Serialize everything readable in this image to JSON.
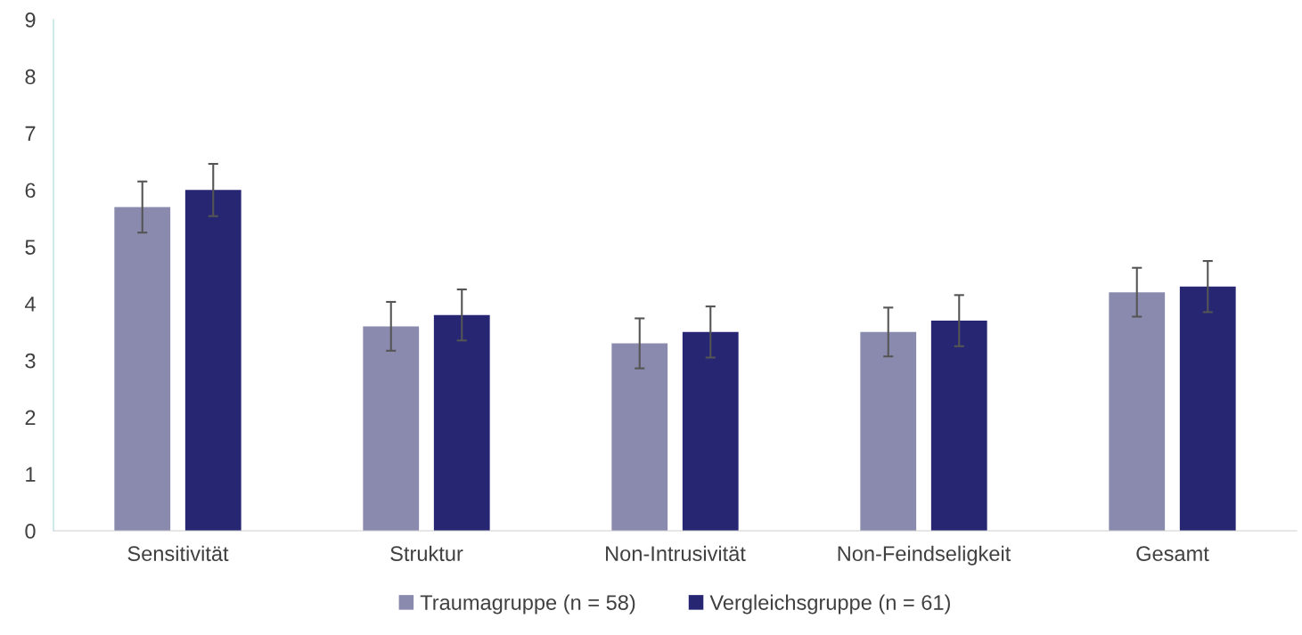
{
  "chart_data": {
    "type": "bar",
    "categories": [
      "Sensitivität",
      "Struktur",
      "Non-Intrusivität",
      "Non-Feindseligkeit",
      "Gesamt"
    ],
    "series": [
      {
        "name": "Traumagruppe (n = 58)",
        "color": "#8a8aae",
        "values": [
          5.7,
          3.6,
          3.3,
          3.5,
          4.2
        ],
        "errors": [
          0.45,
          0.43,
          0.44,
          0.43,
          0.43
        ]
      },
      {
        "name": "Vergleichsgruppe (n = 61)",
        "color": "#262673",
        "values": [
          6.0,
          3.8,
          3.5,
          3.7,
          4.3
        ],
        "errors": [
          0.46,
          0.45,
          0.45,
          0.45,
          0.45
        ]
      }
    ],
    "ylim": [
      0,
      9
    ],
    "yticks": [
      0,
      1,
      2,
      3,
      4,
      5,
      6,
      7,
      8,
      9
    ],
    "grid": false,
    "legend": "bottom"
  }
}
